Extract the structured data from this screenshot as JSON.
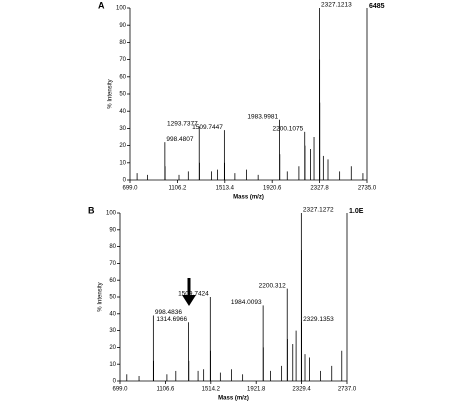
{
  "chart_data": [
    {
      "type": "spectrum",
      "panel_label": "A",
      "right_label": "6485",
      "y_label": "% Intensity",
      "x_label": "Mass (m/z)",
      "x": [
        998.4807,
        1293.7377,
        1509.7447,
        1983.9981,
        2200.1075,
        2327.1213
      ],
      "values": [
        22,
        31,
        29,
        35,
        28,
        100
      ],
      "minor_x": [
        760,
        850,
        1000.5,
        1120,
        1200,
        1295.7,
        1400,
        1450,
        1511.7,
        1600,
        1700,
        1800,
        1985.9,
        2050,
        2150,
        2202.1,
        2250,
        2280,
        2328.1,
        2329.1,
        2360,
        2400,
        2500,
        2600,
        2700
      ],
      "minor_values": [
        4,
        3,
        8,
        3,
        5,
        10,
        5,
        6,
        10,
        4,
        6,
        3,
        15,
        5,
        8,
        20,
        18,
        25,
        70,
        45,
        14,
        12,
        5,
        8,
        4
      ],
      "xlim": [
        699.0,
        2735.0
      ],
      "xticks": [
        {
          "value": 699.0,
          "label": "699.0"
        },
        {
          "value": 1106.2,
          "label": "1106.2"
        },
        {
          "value": 1513.4,
          "label": "1513.4"
        },
        {
          "value": 1920.6,
          "label": "1920.6"
        },
        {
          "value": 2327.8,
          "label": "2327.8"
        },
        {
          "value": 2735.0,
          "label": "2735.0"
        }
      ],
      "ylim": [
        0,
        100
      ],
      "yticks": [
        0,
        10,
        20,
        30,
        40,
        50,
        60,
        70,
        80,
        90,
        100
      ]
    },
    {
      "type": "spectrum",
      "panel_label": "B",
      "right_label": "1.0E",
      "y_label": "% Intensity",
      "x_label": "Mass (m/z)",
      "x": [
        998.4836,
        1314.6966,
        1509.7424,
        1984.0093,
        2200.312,
        2327.1272,
        2329.1353
      ],
      "values": [
        39,
        35,
        50,
        45,
        55,
        100,
        35
      ],
      "minor_x": [
        760,
        870,
        1000.5,
        1120,
        1200,
        1316.7,
        1400,
        1450,
        1511.7,
        1600,
        1700,
        1800,
        1986.0,
        2050,
        2150,
        2202.3,
        2250,
        2280,
        2328.1,
        2360,
        2400,
        2500,
        2600,
        2690
      ],
      "minor_values": [
        4,
        3,
        12,
        4,
        6,
        12,
        6,
        7,
        18,
        5,
        7,
        4,
        20,
        6,
        9,
        25,
        22,
        30,
        78,
        16,
        14,
        6,
        9,
        18
      ],
      "xlim": [
        699.0,
        2737.0
      ],
      "xticks": [
        {
          "value": 699.0,
          "label": "699.0"
        },
        {
          "value": 1106.6,
          "label": "1106.6"
        },
        {
          "value": 1514.2,
          "label": "1514.2"
        },
        {
          "value": 1921.8,
          "label": "1921.8"
        },
        {
          "value": 2329.4,
          "label": "2329.4"
        },
        {
          "value": 2737.0,
          "label": "2737.0"
        }
      ],
      "ylim": [
        0,
        100
      ],
      "yticks": [
        0,
        10,
        20,
        30,
        40,
        50,
        60,
        70,
        80,
        90,
        100
      ]
    }
  ]
}
